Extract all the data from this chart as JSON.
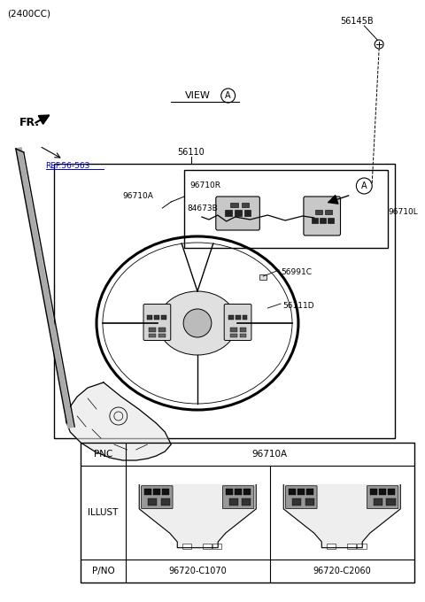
{
  "bg_color": "#ffffff",
  "fig_width": 4.8,
  "fig_height": 6.8,
  "dpi": 100,
  "label_2400cc": "(2400CC)",
  "label_56110": "56110",
  "label_56145B": "56145B",
  "label_96710R": "96710R",
  "label_96710A": "96710A",
  "label_84673B": "84673B",
  "label_96710L": "96710L",
  "label_56991C": "56991C",
  "label_56111D": "56111D",
  "label_ref": "REF.56-563",
  "label_fr": "FR.",
  "label_view": "VIEW",
  "label_A": "A",
  "label_pnc": "PNC",
  "label_illust": "ILLUST",
  "label_pno": "P/NO",
  "label_pnc_val": "96710A",
  "label_pno1": "96720-C1070",
  "label_pno2": "96720-C2060"
}
